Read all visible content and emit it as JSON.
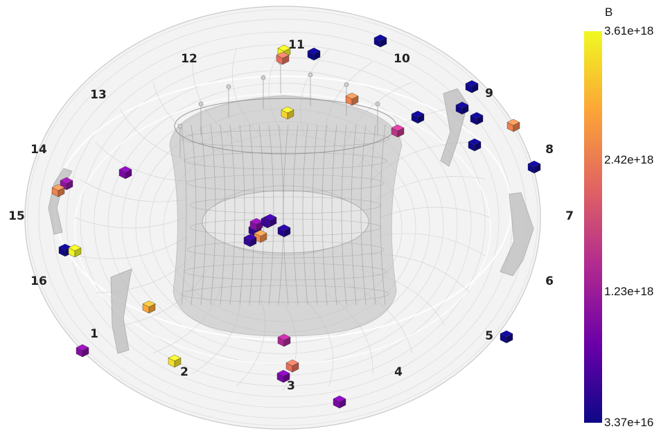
{
  "viewer": {
    "sector_labels": [
      "1",
      "2",
      "3",
      "4",
      "5",
      "6",
      "7",
      "8",
      "9",
      "10",
      "11",
      "12",
      "13",
      "14",
      "15",
      "16"
    ]
  },
  "colorbar": {
    "title": "B",
    "ticks": [
      "3.61e+18",
      "2.42e+18",
      "1.23e+18",
      "3.37e+16"
    ],
    "colormap": "plasma",
    "colors": [
      "#0d0887",
      "#6a00a8",
      "#b12a90",
      "#e16462",
      "#fca636",
      "#f0f921"
    ]
  },
  "markers": [
    {
      "value": 3.6e+18
    },
    {
      "value": 2.3e+18
    },
    {
      "value": 4e+16
    },
    {
      "value": 3e+16
    },
    {
      "value": 3.3e+18
    },
    {
      "value": 2.5e+18
    },
    {
      "value": 1.6e+18
    },
    {
      "value": 4e+16
    },
    {
      "value": 5e+16
    },
    {
      "value": 4e+16
    },
    {
      "value": 4e+16
    },
    {
      "value": 5e+16
    },
    {
      "value": 4e+16
    },
    {
      "value": 2.5e+18
    },
    {
      "value": 9e+17
    },
    {
      "value": 1.1e+18
    },
    {
      "value": 2.5e+18
    },
    {
      "value": 4e+16
    },
    {
      "value": 3.6e+18
    },
    {
      "value": 3e+17
    },
    {
      "value": 1e+18
    },
    {
      "value": 3e+17
    },
    {
      "value": 4e+17
    },
    {
      "value": 2e+17
    },
    {
      "value": 2.6e+18
    },
    {
      "value": 3e+17
    },
    {
      "value": 2.9e+18
    },
    {
      "value": 1e+18
    },
    {
      "value": 3.4e+18
    },
    {
      "value": 1.4e+18
    },
    {
      "value": 2.3e+18
    },
    {
      "value": 9e+17
    },
    {
      "value": 9e+17
    },
    {
      "value": 4e+16
    }
  ]
}
